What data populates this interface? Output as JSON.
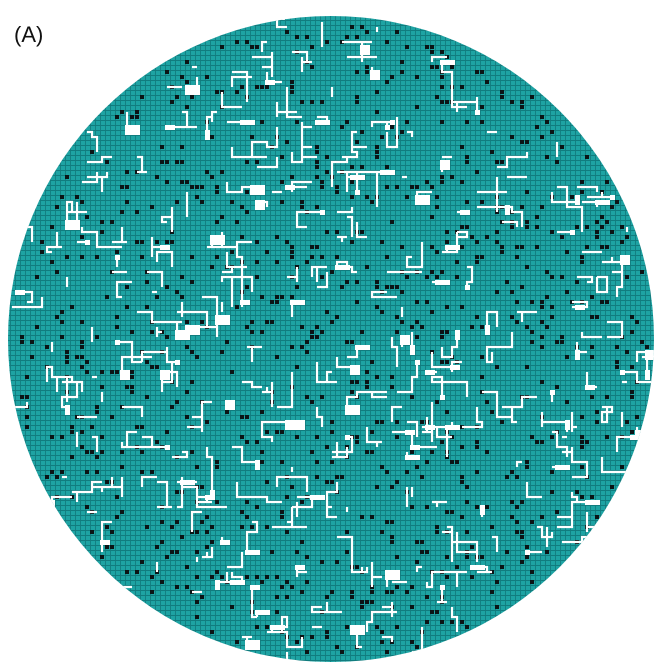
{
  "panel_label": "(A)"
}
